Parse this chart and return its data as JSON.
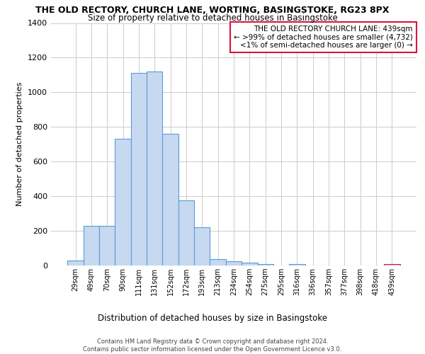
{
  "title": "THE OLD RECTORY, CHURCH LANE, WORTING, BASINGSTOKE, RG23 8PX",
  "subtitle": "Size of property relative to detached houses in Basingstoke",
  "xlabel": "Distribution of detached houses by size in Basingstoke",
  "ylabel": "Number of detached properties",
  "categories": [
    "29sqm",
    "49sqm",
    "70sqm",
    "90sqm",
    "111sqm",
    "131sqm",
    "152sqm",
    "172sqm",
    "193sqm",
    "213sqm",
    "234sqm",
    "254sqm",
    "275sqm",
    "295sqm",
    "316sqm",
    "336sqm",
    "357sqm",
    "377sqm",
    "398sqm",
    "418sqm",
    "439sqm"
  ],
  "values": [
    30,
    230,
    230,
    730,
    1110,
    1120,
    760,
    375,
    220,
    35,
    25,
    18,
    10,
    0,
    10,
    0,
    0,
    0,
    0,
    0,
    10
  ],
  "bar_fill_color": "#c6d9f0",
  "bar_edge_color": "#5b9bd5",
  "highlight_bar_index": 20,
  "highlight_fill_color": "#c6d9f0",
  "highlight_edge_color": "#dc143c",
  "ylim": [
    0,
    1400
  ],
  "yticks": [
    0,
    200,
    400,
    600,
    800,
    1000,
    1200,
    1400
  ],
  "annotation_text": "THE OLD RECTORY CHURCH LANE: 439sqm\n← >99% of detached houses are smaller (4,732)\n<1% of semi-detached houses are larger (0) →",
  "footer": "Contains HM Land Registry data © Crown copyright and database right 2024.\nContains public sector information licensed under the Open Government Licence v3.0.",
  "annotation_box_fill": "#ffffff",
  "annotation_box_edge": "#dc143c",
  "grid_color": "#cccccc",
  "background_color": "#ffffff"
}
